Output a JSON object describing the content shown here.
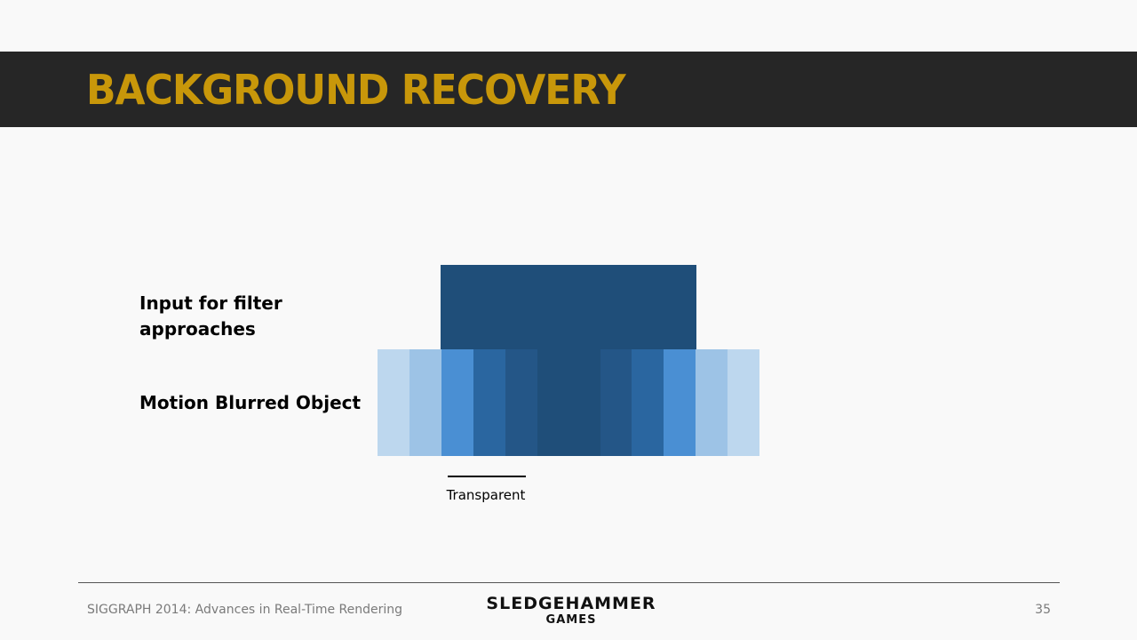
{
  "slide": {
    "title": "BACKGROUND RECOVERY",
    "label_input": "Input for filter approaches",
    "label_motion": "Motion Blurred Object",
    "marker_label": "Transparent"
  },
  "footer": {
    "left_text": "SIGGRAPH 2014: Advances in Real-Time Rendering",
    "logo_main": "SLEDGEHAMMER",
    "logo_sub": "GAMES",
    "page_number": "35"
  },
  "colors": {
    "title": "#c8970a",
    "header_band": "#262626",
    "object": "#1f4e79",
    "strip": [
      "#bdd7ee",
      "#9dc3e6",
      "#4a8fd3",
      "#2a66a0",
      "#245687",
      "#1f4e79",
      "#245687",
      "#2a66a0",
      "#4a8fd3",
      "#9dc3e6",
      "#bdd7ee"
    ]
  }
}
